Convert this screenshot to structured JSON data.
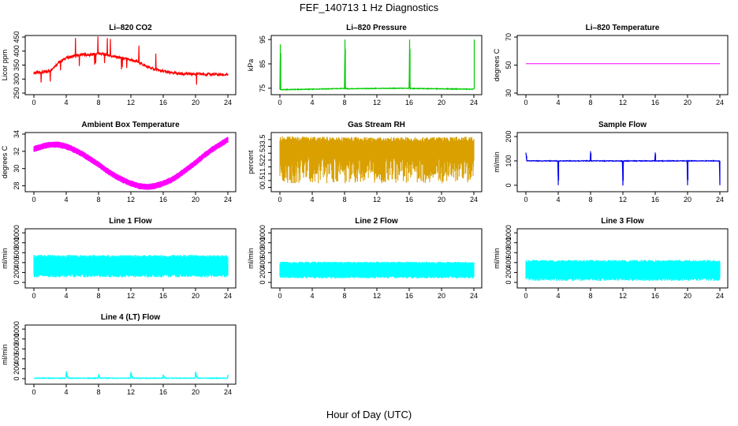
{
  "figure": {
    "title": "FEF_140713  1 Hz Diagnostics",
    "xlabel": "Hour of Day (UTC)"
  },
  "chart_data": [
    {
      "type": "line",
      "title": "Li–820 CO2",
      "ylabel": "Licor ppm",
      "color": "#ff0000",
      "xlim": [
        0,
        24
      ],
      "ylim": [
        250,
        450
      ],
      "xticks": [
        0,
        4,
        8,
        12,
        16,
        20,
        24
      ],
      "yticks": [
        250,
        300,
        350,
        400,
        450
      ],
      "series": [
        {
          "x": [
            0,
            1,
            2,
            3,
            4,
            5,
            6,
            7,
            8,
            9,
            10,
            11,
            12,
            13,
            14,
            15,
            16,
            17,
            18,
            19,
            20,
            21,
            22,
            23,
            24
          ],
          "y": [
            322,
            324,
            330,
            358,
            376,
            382,
            388,
            386,
            392,
            387,
            380,
            374,
            368,
            360,
            344,
            334,
            328,
            322,
            320,
            319,
            318,
            318,
            317,
            316,
            315
          ]
        }
      ]
    },
    {
      "type": "line",
      "title": "Li–820 Pressure",
      "ylabel": "kPa",
      "color": "#00cc00",
      "xlim": [
        0,
        24
      ],
      "ylim": [
        73,
        96
      ],
      "xticks": [
        0,
        4,
        8,
        12,
        16,
        20,
        24
      ],
      "yticks": [
        75,
        85,
        95
      ],
      "series": [
        {
          "x": [
            0,
            0.05,
            0.1,
            4,
            8,
            8.05,
            8.1,
            16,
            16.05,
            16.1,
            24,
            24.05
          ],
          "y": [
            74.5,
            93,
            74.4,
            74.6,
            74.9,
            95,
            74.8,
            75,
            95,
            74.9,
            74.6,
            95
          ]
        }
      ]
    },
    {
      "type": "line",
      "title": "Li–820 Temperature",
      "ylabel": "degrees C",
      "color": "#ff00ff",
      "xlim": [
        0,
        24
      ],
      "ylim": [
        30,
        70
      ],
      "xticks": [
        0,
        4,
        8,
        12,
        16,
        20,
        24
      ],
      "yticks": [
        30,
        50,
        70
      ],
      "series": [
        {
          "x": [
            0,
            24
          ],
          "y": [
            51,
            51
          ]
        }
      ]
    },
    {
      "type": "area",
      "title": "Ambient Box Temperature",
      "ylabel": "degrees C",
      "color": "#ff00ff",
      "xlim": [
        0,
        24
      ],
      "ylim": [
        27.5,
        34
      ],
      "xticks": [
        0,
        4,
        8,
        12,
        16,
        20,
        24
      ],
      "yticks": [
        28,
        30,
        32,
        34
      ],
      "series": [
        {
          "x": [
            0,
            1,
            2,
            3,
            4,
            5,
            6,
            7,
            8,
            9,
            10,
            11,
            12,
            13,
            14,
            15,
            16,
            17,
            18,
            19,
            20,
            21,
            22,
            23,
            24
          ],
          "y": [
            32.6,
            32.9,
            33.1,
            33.1,
            32.9,
            32.5,
            32.0,
            31.4,
            30.8,
            30.1,
            29.5,
            29.0,
            28.6,
            28.3,
            28.2,
            28.3,
            28.6,
            29.0,
            29.6,
            30.3,
            31.0,
            31.8,
            32.5,
            33.1,
            33.7
          ],
          "band": 0.7
        }
      ]
    },
    {
      "type": "area",
      "title": "Gas Stream RH",
      "ylabel": "percent",
      "color": "#d9a000",
      "xlim": [
        0,
        24
      ],
      "ylim": [
        -0.2,
        3.9
      ],
      "xticks": [
        0,
        4,
        8,
        12,
        16,
        20,
        24
      ],
      "yticks": [
        0,
        0.5,
        1,
        1.5,
        2,
        2.5,
        3,
        3.5
      ],
      "series": [
        {
          "x": [
            0,
            4,
            8,
            12,
            16,
            20,
            24
          ],
          "y": [
            3.55,
            3.55,
            3.5,
            3.5,
            3.5,
            3.5,
            3.55
          ],
          "low": 0.3
        }
      ]
    },
    {
      "type": "line",
      "title": "Sample Flow",
      "ylabel": "ml/min",
      "color": "#0000ee",
      "xlim": [
        0,
        24
      ],
      "ylim": [
        -20,
        210
      ],
      "xticks": [
        0,
        4,
        8,
        12,
        16,
        20,
        24
      ],
      "yticks": [
        0,
        100,
        200
      ],
      "series": [
        {
          "x": [
            0,
            0.1,
            3.95,
            4,
            4.05,
            7.95,
            8,
            8.05,
            11.95,
            12,
            12.05,
            15.95,
            16,
            16.05,
            19.95,
            20,
            20.05,
            23.95,
            24
          ],
          "y": [
            135,
            100,
            100,
            0,
            100,
            100,
            140,
            100,
            100,
            0,
            100,
            100,
            135,
            100,
            100,
            0,
            100,
            100,
            0
          ]
        }
      ]
    },
    {
      "type": "area",
      "title": "Line 1 Flow",
      "ylabel": "ml/min",
      "color": "#00ffff",
      "xlim": [
        0,
        24
      ],
      "ylim": [
        -80,
        1050
      ],
      "xticks": [
        0,
        4,
        8,
        12,
        16,
        20,
        24
      ],
      "yticks": [
        0,
        200,
        400,
        600,
        800,
        1000
      ],
      "series": [
        {
          "x": [
            0,
            24
          ],
          "y": [
            530,
            530
          ],
          "low": 100
        }
      ]
    },
    {
      "type": "area",
      "title": "Line 2 Flow",
      "ylabel": "ml/min",
      "color": "#00ffff",
      "xlim": [
        0,
        24
      ],
      "ylim": [
        -80,
        1050
      ],
      "xticks": [
        0,
        4,
        8,
        12,
        16,
        20,
        24
      ],
      "yticks": [
        0,
        200,
        400,
        600,
        800,
        1000
      ],
      "series": [
        {
          "x": [
            0,
            24
          ],
          "y": [
            400,
            400
          ],
          "low": 80
        }
      ]
    },
    {
      "type": "area",
      "title": "Line 3 Flow",
      "ylabel": "ml/min",
      "color": "#00ffff",
      "xlim": [
        0,
        24
      ],
      "ylim": [
        -80,
        1050
      ],
      "xticks": [
        0,
        4,
        8,
        12,
        16,
        20,
        24
      ],
      "yticks": [
        0,
        200,
        400,
        600,
        800,
        1000
      ],
      "series": [
        {
          "x": [
            0,
            24
          ],
          "y": [
            430,
            430
          ],
          "low": 30
        }
      ]
    },
    {
      "type": "line",
      "title": "Line 4 (LT) Flow",
      "ylabel": "ml/min",
      "color": "#00ffff",
      "xlim": [
        0,
        24
      ],
      "ylim": [
        -80,
        1050
      ],
      "xticks": [
        0,
        4,
        8,
        12,
        16,
        20,
        24
      ],
      "yticks": [
        0,
        200,
        400,
        600,
        800,
        1000
      ],
      "series": [
        {
          "x": [
            0,
            3.95,
            4,
            4.2,
            7.95,
            8,
            8.2,
            11.95,
            12,
            12.2,
            15.95,
            16,
            16.2,
            19.95,
            20,
            20.2,
            23.95,
            24
          ],
          "y": [
            10,
            10,
            150,
            10,
            10,
            80,
            10,
            10,
            130,
            10,
            10,
            80,
            10,
            10,
            140,
            10,
            10,
            80
          ]
        }
      ]
    }
  ]
}
